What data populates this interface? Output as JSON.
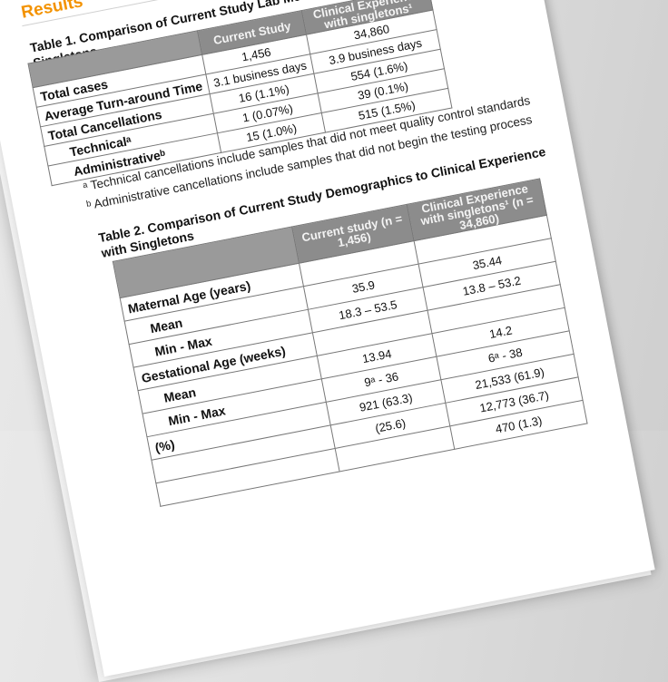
{
  "section_title": "Results",
  "table1": {
    "title_line1": "Table 1. Comparison of Current Study Lab Me",
    "title_line2": "Singletons",
    "headers": [
      "",
      "Current Study",
      "Clinical Experience with singletons¹"
    ],
    "rows": [
      {
        "label": "Total cases",
        "indent": false,
        "current": "1,456",
        "clinical": "34,860"
      },
      {
        "label": "Average Turn-around Time",
        "indent": false,
        "current": "3.1 business days",
        "clinical": "3.9 business days"
      },
      {
        "label": "Total Cancellations",
        "indent": false,
        "current": "16 (1.1%)",
        "clinical": "554 (1.6%)"
      },
      {
        "label": "Technicalᵃ",
        "indent": true,
        "current": "1 (0.07%)",
        "clinical": "39 (0.1%)"
      },
      {
        "label": "Administrativeᵇ",
        "indent": true,
        "current": "15 (1.0%)",
        "clinical": "515 (1.5%)"
      }
    ],
    "footnotes": [
      "ᵃ Technical cancellations include samples that did not meet quality control standards",
      "ᵇ Administrative cancellations include samples that did not begin the testing process"
    ]
  },
  "table2": {
    "title_line1": "Table 2. Comparison of Current Study Demographics to Clinical Experience",
    "title_line2": "with Singletons",
    "headers": [
      "",
      "Current study (n = 1,456)",
      "Clinical Experience with singletons¹ (n = 34,860)"
    ],
    "rows": [
      {
        "label": "Maternal Age (years)",
        "indent": false,
        "current": "",
        "clinical": ""
      },
      {
        "label": "Mean",
        "indent": true,
        "current": "35.9",
        "clinical": "35.44"
      },
      {
        "label": "Min - Max",
        "indent": true,
        "current": "18.3 – 53.5",
        "clinical": "13.8 – 53.2"
      },
      {
        "label": "Gestational Age (weeks)",
        "indent": false,
        "current": "",
        "clinical": ""
      },
      {
        "label": "Mean",
        "indent": true,
        "current": "13.94",
        "clinical": "14.2"
      },
      {
        "label": "Min - Max",
        "indent": true,
        "current": "9ᵃ - 36",
        "clinical": "6ᵃ - 38"
      },
      {
        "label": "(%)",
        "indent": false,
        "current": "921 (63.3)",
        "clinical": "21,533 (61.9)"
      },
      {
        "label": "",
        "indent": false,
        "current": "(25.6)",
        "clinical": "12,773 (36.7)"
      },
      {
        "label": "",
        "indent": false,
        "current": "",
        "clinical": "470 (1.3)"
      }
    ]
  },
  "colors": {
    "accent": "#f39200",
    "header_fill": "#8c8c8c"
  }
}
